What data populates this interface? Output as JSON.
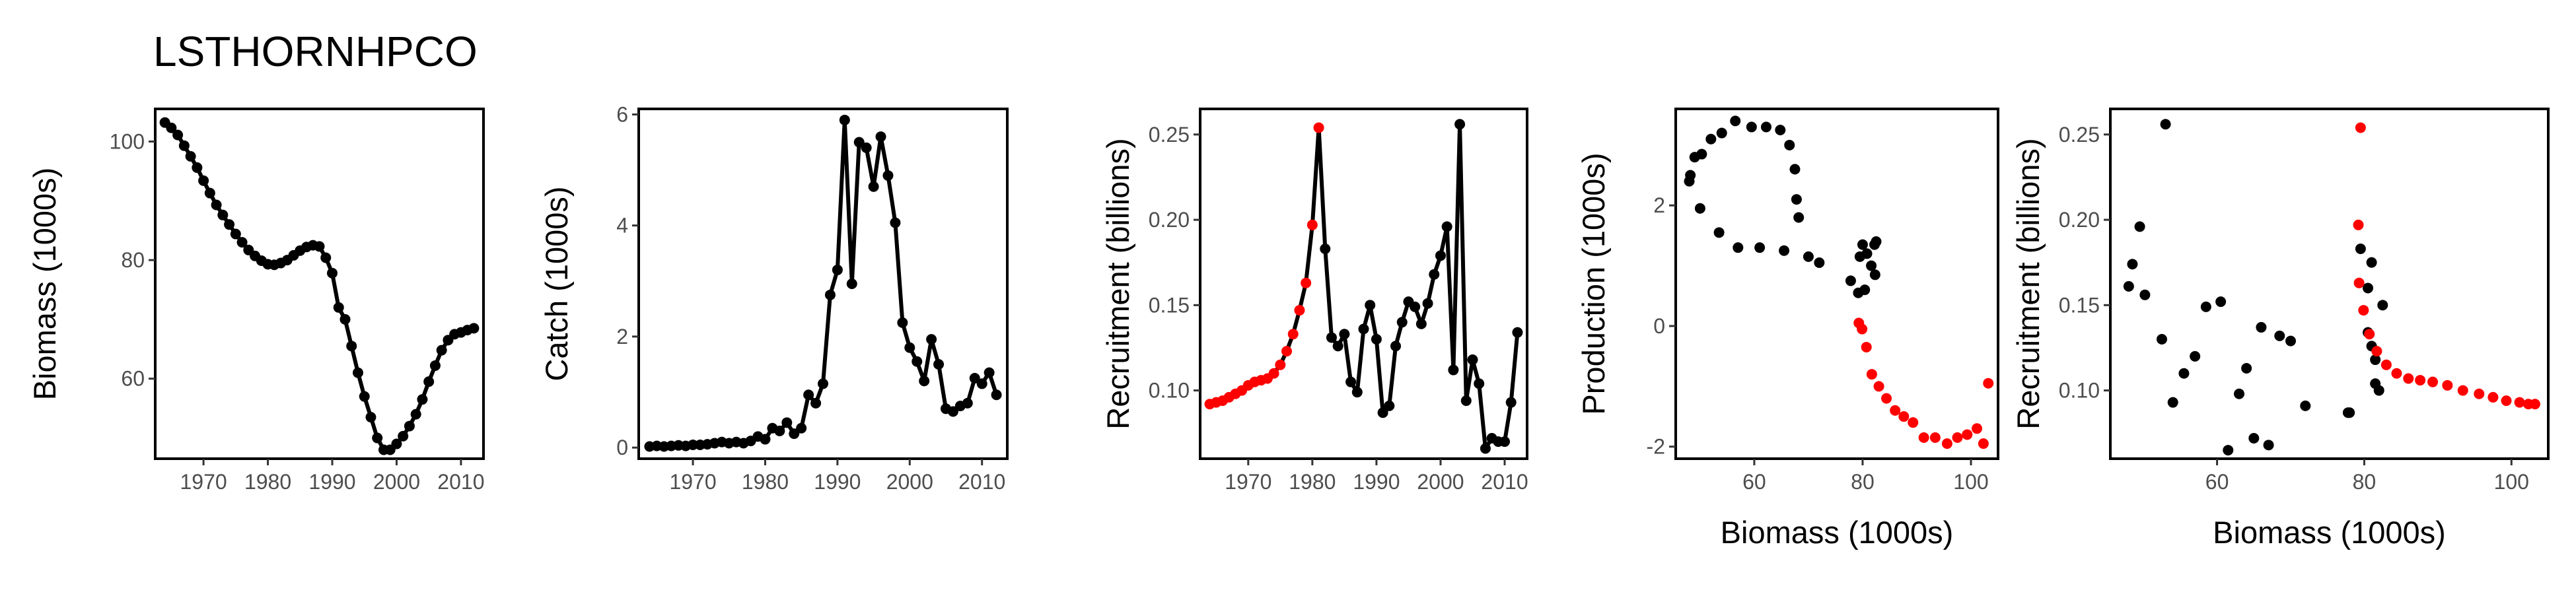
{
  "title": "LSTHORNHPCO",
  "colors": {
    "default_point": "#000000",
    "highlight_point": "#ff0000",
    "line": "#000000"
  },
  "chart_data": [
    {
      "type": "line",
      "xlabel": "",
      "ylabel": "Biomass (1000s)",
      "xlim": [
        1962.5,
        2013.5
      ],
      "ylim": [
        46.5,
        105.5
      ],
      "xticks": [
        1970,
        1980,
        1990,
        2000,
        2010
      ],
      "xtick_labels": [
        "1970",
        "1980",
        "1990",
        "2000",
        "2010"
      ],
      "yticks": [
        60,
        80,
        100
      ],
      "ytick_labels": [
        "60",
        "80",
        "100"
      ],
      "grid": false,
      "series": [
        {
          "x": [
            1964,
            1965,
            1966,
            1967,
            1968,
            1969,
            1970,
            1971,
            1972,
            1973,
            1974,
            1975,
            1976,
            1977,
            1978,
            1979,
            1980,
            1981,
            1982,
            1983,
            1984,
            1985,
            1986,
            1987,
            1988,
            1989,
            1990,
            1991,
            1992,
            1993,
            1994,
            1995,
            1996,
            1997,
            1998,
            1999,
            2000,
            2001,
            2002,
            2003,
            2004,
            2005,
            2006,
            2007,
            2008,
            2009,
            2010,
            2011,
            2012
          ],
          "y": [
            103.2,
            102.3,
            101.1,
            99.3,
            97.5,
            95.6,
            93.4,
            91.3,
            89.3,
            87.6,
            86.0,
            84.4,
            83.0,
            81.7,
            80.7,
            79.9,
            79.3,
            79.2,
            79.5,
            80.0,
            80.8,
            81.6,
            82.2,
            82.5,
            82.3,
            80.4,
            77.8,
            72.0,
            70.0,
            65.5,
            61.0,
            57.0,
            53.5,
            50.0,
            48.0,
            48.0,
            49.0,
            50.3,
            52.0,
            54.0,
            56.5,
            59.5,
            62.2,
            64.8,
            66.5,
            67.5,
            67.8,
            68.2,
            68.5
          ],
          "highlight": []
        }
      ]
    },
    {
      "type": "line",
      "xlabel": "",
      "ylabel": "Catch (1000s)",
      "xlim": [
        1962.5,
        2013.5
      ],
      "ylim": [
        -0.2,
        6.1
      ],
      "xticks": [
        1970,
        1980,
        1990,
        2000,
        2010
      ],
      "xtick_labels": [
        "1970",
        "1980",
        "1990",
        "2000",
        "2010"
      ],
      "yticks": [
        0,
        2,
        4,
        6
      ],
      "ytick_labels": [
        "0",
        "2",
        "4",
        "6"
      ],
      "grid": false,
      "series": [
        {
          "x": [
            1964,
            1965,
            1966,
            1967,
            1968,
            1969,
            1970,
            1971,
            1972,
            1973,
            1974,
            1975,
            1976,
            1977,
            1978,
            1979,
            1980,
            1981,
            1982,
            1983,
            1984,
            1985,
            1986,
            1987,
            1988,
            1989,
            1990,
            1991,
            1992,
            1993,
            1994,
            1995,
            1996,
            1997,
            1998,
            1999,
            2000,
            2001,
            2002,
            2003,
            2004,
            2005,
            2006,
            2007,
            2008,
            2009,
            2010,
            2011,
            2012
          ],
          "y": [
            0.02,
            0.03,
            0.02,
            0.03,
            0.04,
            0.03,
            0.05,
            0.05,
            0.06,
            0.08,
            0.1,
            0.08,
            0.1,
            0.08,
            0.12,
            0.2,
            0.15,
            0.35,
            0.3,
            0.45,
            0.25,
            0.35,
            0.95,
            0.8,
            1.15,
            2.75,
            3.2,
            5.9,
            2.95,
            5.5,
            5.4,
            4.7,
            5.6,
            4.9,
            4.05,
            2.25,
            1.8,
            1.55,
            1.2,
            1.95,
            1.5,
            0.7,
            0.65,
            0.75,
            0.8,
            1.25,
            1.15,
            1.35,
            0.95
          ],
          "highlight": []
        }
      ]
    },
    {
      "type": "line",
      "xlabel": "",
      "ylabel": "Recruitment (billions)",
      "xlim": [
        1962.5,
        2013.5
      ],
      "ylim": [
        0.06,
        0.265
      ],
      "xticks": [
        1970,
        1980,
        1990,
        2000,
        2010
      ],
      "xtick_labels": [
        "1970",
        "1980",
        "1990",
        "2000",
        "2010"
      ],
      "yticks": [
        0.1,
        0.15,
        0.2,
        0.25
      ],
      "ytick_labels": [
        "0.10",
        "0.15",
        "0.20",
        "0.25"
      ],
      "grid": false,
      "series": [
        {
          "x": [
            1964,
            1965,
            1966,
            1967,
            1968,
            1969,
            1970,
            1971,
            1972,
            1973,
            1974,
            1975,
            1976,
            1977,
            1978,
            1979,
            1980,
            1981,
            1982,
            1983,
            1984,
            1985,
            1986,
            1987,
            1988,
            1989,
            1990,
            1991,
            1992,
            1993,
            1994,
            1995,
            1996,
            1997,
            1998,
            1999,
            2000,
            2001,
            2002,
            2003,
            2004,
            2005,
            2006,
            2007,
            2008,
            2009,
            2010,
            2011,
            2012
          ],
          "y": [
            0.092,
            0.093,
            0.094,
            0.096,
            0.098,
            0.1,
            0.103,
            0.105,
            0.106,
            0.107,
            0.11,
            0.115,
            0.123,
            0.133,
            0.147,
            0.163,
            0.197,
            0.254,
            0.183,
            0.131,
            0.126,
            0.133,
            0.105,
            0.099,
            0.136,
            0.15,
            0.13,
            0.087,
            0.091,
            0.126,
            0.14,
            0.152,
            0.149,
            0.139,
            0.151,
            0.168,
            0.179,
            0.196,
            0.112,
            0.256,
            0.094,
            0.118,
            0.104,
            0.066,
            0.072,
            0.07,
            0.07,
            0.093,
            0.134
          ],
          "highlight": [
            0,
            1,
            2,
            3,
            4,
            5,
            6,
            7,
            8,
            9,
            10,
            11,
            12,
            13,
            14,
            15,
            16,
            17
          ]
        }
      ]
    },
    {
      "type": "scatter",
      "xlabel": "Biomass (1000s)",
      "ylabel": "Production (1000s)",
      "xlim": [
        45.5,
        105.0
      ],
      "ylim": [
        -2.2,
        3.6
      ],
      "xticks": [
        60,
        80,
        100
      ],
      "xtick_labels": [
        "60",
        "80",
        "100"
      ],
      "yticks": [
        -2,
        0,
        2
      ],
      "ytick_labels": [
        "-2",
        "0",
        "2"
      ],
      "grid": false,
      "series": [
        {
          "x": [
            48.0,
            48.2,
            49.0,
            50.3,
            52.0,
            54.0,
            56.5,
            59.5,
            62.2,
            64.8,
            66.5,
            67.5,
            67.8,
            68.2,
            50.0,
            53.5,
            57.0,
            61.0,
            65.5,
            70.0,
            72.0,
            77.8,
            80.4,
            82.3,
            82.5,
            82.2,
            81.6,
            80.8,
            80.0,
            79.5,
            79.2,
            79.3,
            79.9,
            80.7,
            81.7,
            83.0,
            84.4,
            86.0,
            87.6,
            89.3,
            91.3,
            93.4,
            95.6,
            97.5,
            99.3,
            101.1,
            102.3,
            103.2
          ],
          "y": [
            2.4,
            2.5,
            2.8,
            2.85,
            3.1,
            3.2,
            3.4,
            3.3,
            3.3,
            3.25,
            3.0,
            2.6,
            2.1,
            1.8,
            1.95,
            1.55,
            1.3,
            1.3,
            1.25,
            1.15,
            1.05,
            0.75,
            0.6,
            0.85,
            1.4,
            1.35,
            1.0,
            1.2,
            1.35,
            1.15,
            0.55,
            0.05,
            -0.05,
            -0.35,
            -0.8,
            -1.0,
            -1.2,
            -1.4,
            -1.5,
            -1.6,
            -1.85,
            -1.85,
            -1.95,
            -1.85,
            -1.8,
            -1.7,
            -1.95,
            -0.95
          ],
          "highlight": [
            31,
            32,
            33,
            34,
            35,
            36,
            37,
            38,
            39,
            40,
            41,
            42,
            43,
            44,
            45,
            46,
            47
          ]
        }
      ]
    },
    {
      "type": "scatter",
      "xlabel": "Biomass (1000s)",
      "ylabel": "Recruitment (billions)",
      "xlim": [
        45.5,
        105.0
      ],
      "ylim": [
        0.06,
        0.265
      ],
      "xticks": [
        60,
        80,
        100
      ],
      "xtick_labels": [
        "60",
        "80",
        "100"
      ],
      "yticks": [
        0.1,
        0.15,
        0.2,
        0.25
      ],
      "ytick_labels": [
        "0.10",
        "0.15",
        "0.20",
        "0.25"
      ],
      "grid": false,
      "series": [
        {
          "x": [
            48.0,
            48.5,
            49.5,
            50.2,
            52.5,
            53.0,
            54.0,
            55.5,
            57.0,
            58.5,
            60.5,
            61.5,
            63.0,
            64.0,
            65.0,
            66.0,
            67.0,
            68.5,
            70.0,
            72.0,
            78.0,
            79.5,
            80.5,
            81.0,
            81.5,
            81.5,
            82.0,
            82.5,
            80.5,
            81.0,
            77.8,
            79.5,
            79.2,
            79.3,
            79.9,
            80.7,
            81.7,
            83.0,
            84.4,
            86.0,
            87.6,
            89.3,
            91.3,
            93.4,
            95.6,
            97.5,
            99.3,
            101.1,
            102.3,
            103.2
          ],
          "y": [
            0.161,
            0.174,
            0.196,
            0.156,
            0.13,
            0.256,
            0.093,
            0.11,
            0.12,
            0.149,
            0.152,
            0.065,
            0.098,
            0.113,
            0.072,
            0.137,
            0.068,
            0.132,
            0.129,
            0.091,
            0.087,
            0.183,
            0.134,
            0.126,
            0.118,
            0.104,
            0.1,
            0.15,
            0.16,
            0.175,
            0.087,
            0.254,
            0.197,
            0.163,
            0.147,
            0.133,
            0.123,
            0.115,
            0.11,
            0.107,
            0.106,
            0.105,
            0.103,
            0.1,
            0.098,
            0.096,
            0.094,
            0.093,
            0.092,
            0.092
          ],
          "highlight": [
            31,
            32,
            33,
            34,
            35,
            36,
            37,
            38,
            39,
            40,
            41,
            42,
            43,
            44,
            45,
            46,
            47,
            48,
            49
          ]
        }
      ]
    }
  ]
}
